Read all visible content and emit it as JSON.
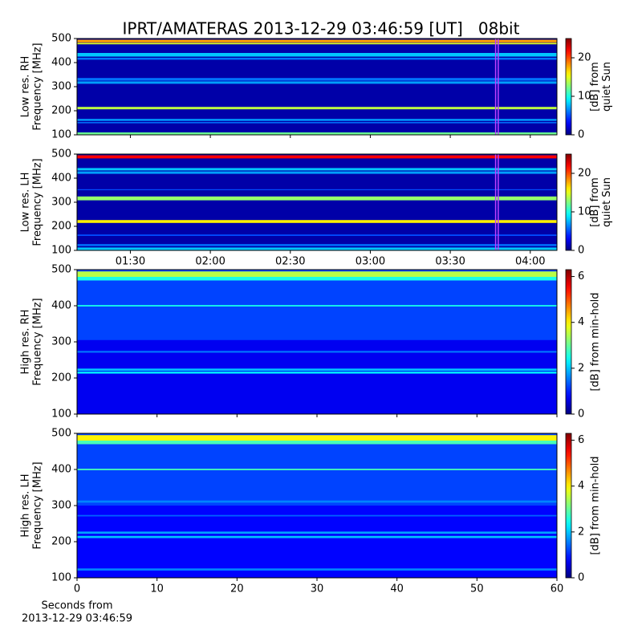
{
  "title": "IPRT/AMATERAS 2013-12-29 03:46:59 [UT]   08bit",
  "chart_data": [
    {
      "type": "spectrogram",
      "colormap": "jet",
      "ylabel": [
        "Low res. RH",
        "Frequency [MHz]"
      ],
      "xlim": [
        70,
        250
      ],
      "xticks": [
        90,
        120,
        150,
        180,
        210,
        240
      ],
      "xtick_labels": false,
      "ylim": [
        100,
        500
      ],
      "yticks": [
        100,
        200,
        300,
        400,
        500
      ],
      "highlight": [
        227,
        228
      ],
      "highlight_color": "#c040ff",
      "bands": [
        [
          100,
          500
        ],
        [
          100,
          110
        ],
        [
          148,
          153
        ],
        [
          158,
          166
        ],
        [
          206,
          216
        ],
        [
          312,
          322
        ],
        [
          325,
          336
        ],
        [
          412,
          420
        ],
        [
          425,
          440
        ],
        [
          476,
          482
        ],
        [
          484,
          495
        ]
      ],
      "values": [
        1,
        12,
        6,
        7,
        14,
        7,
        6,
        6,
        8,
        15,
        18
      ],
      "clim": [
        0,
        25
      ],
      "cticks": [
        0,
        10,
        20
      ],
      "clabel": [
        "[dB] from",
        "quiet Sun"
      ]
    },
    {
      "type": "spectrogram",
      "colormap": "jet",
      "ylabel": [
        "Low res. LH",
        "Frequency [MHz]"
      ],
      "xlim": [
        70,
        250
      ],
      "xticks": [
        {
          "value": 90,
          "label": "01:30"
        },
        {
          "value": 120,
          "label": "02:00"
        },
        {
          "value": 150,
          "label": "02:30"
        },
        {
          "value": 180,
          "label": "03:00"
        },
        {
          "value": 210,
          "label": "03:30"
        },
        {
          "value": 240,
          "label": "04:00"
        }
      ],
      "ylim": [
        100,
        500
      ],
      "yticks": [
        100,
        200,
        300,
        400,
        500
      ],
      "highlight": [
        227,
        228
      ],
      "highlight_color": "#c040ff",
      "bands": [
        [
          100,
          500
        ],
        [
          100,
          112
        ],
        [
          118,
          126
        ],
        [
          160,
          166
        ],
        [
          214,
          226
        ],
        [
          308,
          324
        ],
        [
          350,
          354
        ],
        [
          418,
          428
        ],
        [
          432,
          442
        ],
        [
          482,
          495
        ]
      ],
      "values": [
        1,
        8,
        6,
        5,
        16,
        13,
        5,
        7,
        8,
        22
      ],
      "clim": [
        0,
        25
      ],
      "cticks": [
        0,
        10,
        20
      ],
      "clabel": [
        "[dB] from",
        "quiet Sun"
      ]
    },
    {
      "type": "spectrogram",
      "colormap": "jet",
      "ylabel": [
        "High res. RH",
        "Frequency [MHz]"
      ],
      "xlim": [
        0,
        60
      ],
      "xticks": [
        0,
        10,
        20,
        30,
        40,
        50,
        60
      ],
      "xtick_labels": false,
      "ylim": [
        100,
        500
      ],
      "yticks": [
        100,
        200,
        300,
        400,
        500
      ],
      "bands": [
        [
          100,
          500
        ],
        [
          100,
          305
        ],
        [
          212,
          218
        ],
        [
          220,
          226
        ],
        [
          270,
          275
        ],
        [
          398,
          402
        ],
        [
          470,
          480
        ],
        [
          480,
          495
        ]
      ],
      "values": [
        1.2,
        0.7,
        2.2,
        2,
        1.5,
        2.5,
        2.5,
        3.5
      ],
      "clim": [
        0,
        6.3
      ],
      "cticks": [
        0,
        2,
        4,
        6
      ],
      "clabel": [
        "[dB] from min-hold"
      ]
    },
    {
      "type": "spectrogram",
      "colormap": "jet",
      "ylabel": [
        "High res. LH",
        "Frequency [MHz]"
      ],
      "xlabel": [
        "Seconds from",
        "2013-12-29 03:46:59"
      ],
      "xlim": [
        0,
        60
      ],
      "xticks": [
        0,
        10,
        20,
        30,
        40,
        50,
        60
      ],
      "ylim": [
        100,
        500
      ],
      "yticks": [
        100,
        200,
        300,
        400,
        500
      ],
      "bands": [
        [
          100,
          500
        ],
        [
          100,
          300
        ],
        [
          120,
          126
        ],
        [
          210,
          216
        ],
        [
          222,
          228
        ],
        [
          270,
          274
        ],
        [
          308,
          314
        ],
        [
          398,
          402
        ],
        [
          470,
          480
        ],
        [
          480,
          495
        ]
      ],
      "values": [
        1.2,
        0.8,
        1.6,
        2,
        1.8,
        1.4,
        1.6,
        2.8,
        2.8,
        4
      ],
      "clim": [
        0,
        6.3
      ],
      "cticks": [
        0,
        2,
        4,
        6
      ],
      "clabel": [
        "[dB] from min-hold"
      ]
    }
  ]
}
